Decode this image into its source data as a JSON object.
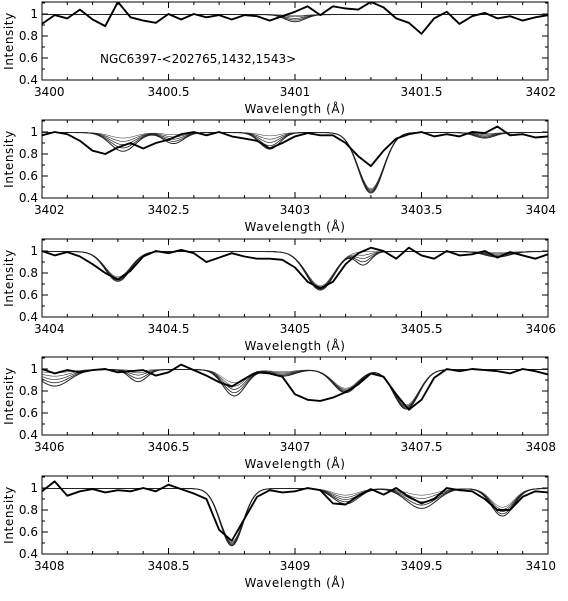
{
  "chart_data": [
    {
      "type": "line",
      "annotation": "NGC6397-<202765,1432,1543>",
      "xlabel": "Wavelength (Å)",
      "ylabel": "Intensity",
      "xlim": [
        3400,
        3402
      ],
      "ylim": [
        0.4,
        1.1
      ],
      "xticks": [
        3400,
        3400.5,
        3401,
        3401.5,
        3402
      ],
      "xtick_labels": [
        "3400",
        "3400.5",
        "3401",
        "3401.5",
        "3402"
      ],
      "yticks": [
        0.4,
        0.6,
        0.8,
        1.0
      ],
      "ytick_labels": [
        "0.4",
        "0.6",
        "0.8",
        "1"
      ],
      "lines": [
        {
          "center": 3401.0,
          "depth": [
            0.01,
            0.02,
            0.035,
            0.05,
            0.065
          ],
          "width": 0.04
        }
      ],
      "observed": {
        "x": [
          3400,
          3400.05,
          3400.1,
          3400.15,
          3400.2,
          3400.25,
          3400.3,
          3400.35,
          3400.4,
          3400.45,
          3400.5,
          3400.55,
          3400.6,
          3400.65,
          3400.7,
          3400.75,
          3400.8,
          3400.85,
          3400.9,
          3400.95,
          3401,
          3401.05,
          3401.1,
          3401.15,
          3401.2,
          3401.25,
          3401.3,
          3401.35,
          3401.4,
          3401.45,
          3401.5,
          3401.55,
          3401.6,
          3401.65,
          3401.7,
          3401.75,
          3401.8,
          3401.85,
          3401.9,
          3401.95,
          3402
        ],
        "y": [
          0.91,
          0.99,
          0.96,
          1.04,
          0.95,
          0.89,
          1.11,
          0.97,
          0.94,
          0.92,
          1.0,
          0.95,
          1.0,
          0.97,
          0.99,
          0.95,
          0.99,
          0.98,
          0.94,
          0.98,
          1.02,
          1.07,
          0.99,
          1.07,
          1.05,
          1.04,
          1.11,
          1.06,
          0.96,
          0.92,
          0.82,
          0.96,
          1.02,
          0.91,
          0.98,
          1.01,
          0.96,
          0.98,
          0.94,
          0.97,
          0.99
        ]
      }
    },
    {
      "type": "line",
      "xlabel": "Wavelength (Å)",
      "ylabel": "Intensity",
      "xlim": [
        3402,
        3404
      ],
      "ylim": [
        0.4,
        1.1
      ],
      "xticks": [
        3402,
        3402.5,
        3403,
        3403.5,
        3404
      ],
      "xtick_labels": [
        "3402",
        "3402.5",
        "3403",
        "3403.5",
        "3404"
      ],
      "yticks": [
        0.4,
        0.6,
        0.8,
        1.0
      ],
      "ytick_labels": [
        "0.4",
        "0.6",
        "0.8",
        "1"
      ],
      "lines": [
        {
          "center": 3402.32,
          "depth": [
            0.05,
            0.08,
            0.11,
            0.14,
            0.17
          ],
          "width": 0.05
        },
        {
          "center": 3402.52,
          "depth": [
            0.02,
            0.04,
            0.06,
            0.08,
            0.1
          ],
          "width": 0.04
        },
        {
          "center": 3402.9,
          "depth": [
            0.03,
            0.06,
            0.09,
            0.12,
            0.15
          ],
          "width": 0.04
        },
        {
          "center": 3403.3,
          "depth": [
            0.51,
            0.52,
            0.53,
            0.54,
            0.55
          ],
          "width": 0.05
        },
        {
          "center": 3403.75,
          "depth": [
            0.01,
            0.02,
            0.03,
            0.04,
            0.05
          ],
          "width": 0.04
        }
      ],
      "observed": {
        "x": [
          3402,
          3402.05,
          3402.1,
          3402.15,
          3402.2,
          3402.25,
          3402.3,
          3402.35,
          3402.4,
          3402.45,
          3402.5,
          3402.55,
          3402.6,
          3402.65,
          3402.7,
          3402.75,
          3402.8,
          3402.85,
          3402.9,
          3402.95,
          3403,
          3403.05,
          3403.1,
          3403.15,
          3403.2,
          3403.25,
          3403.3,
          3403.35,
          3403.4,
          3403.45,
          3403.5,
          3403.55,
          3403.6,
          3403.65,
          3403.7,
          3403.75,
          3403.8,
          3403.85,
          3403.9,
          3403.95,
          3404
        ],
        "y": [
          0.97,
          1.0,
          0.98,
          0.92,
          0.83,
          0.8,
          0.86,
          0.9,
          0.85,
          0.9,
          0.93,
          0.98,
          1.0,
          0.97,
          1.0,
          0.96,
          0.94,
          0.92,
          0.85,
          0.9,
          0.96,
          0.99,
          0.97,
          0.97,
          0.9,
          0.78,
          0.69,
          0.83,
          0.94,
          0.98,
          1.0,
          0.96,
          0.98,
          0.96,
          1.0,
          0.99,
          1.05,
          0.97,
          0.98,
          0.95,
          0.96
        ]
      }
    },
    {
      "type": "line",
      "xlabel": "Wavelength (Å)",
      "ylabel": "Intensity",
      "xlim": [
        3404,
        3406
      ],
      "ylim": [
        0.4,
        1.1
      ],
      "xticks": [
        3404,
        3404.5,
        3405,
        3405.5,
        3406
      ],
      "xtick_labels": [
        "3404",
        "3404.5",
        "3405",
        "3405.5",
        "3406"
      ],
      "yticks": [
        0.4,
        0.6,
        0.8,
        1.0
      ],
      "ytick_labels": [
        "0.4",
        "0.6",
        "0.8",
        "1"
      ],
      "lines": [
        {
          "center": 3404.3,
          "depth": [
            0.23,
            0.24,
            0.25,
            0.26,
            0.27
          ],
          "width": 0.05
        },
        {
          "center": 3405.1,
          "depth": [
            0.31,
            0.32,
            0.33,
            0.34,
            0.35
          ],
          "width": 0.055
        },
        {
          "center": 3405.27,
          "depth": [
            0.0,
            0.03,
            0.06,
            0.09,
            0.12
          ],
          "width": 0.03
        },
        {
          "center": 3405.8,
          "depth": [
            0.01,
            0.02,
            0.03,
            0.04,
            0.05
          ],
          "width": 0.05
        }
      ],
      "observed": {
        "x": [
          3404,
          3404.05,
          3404.1,
          3404.15,
          3404.2,
          3404.25,
          3404.3,
          3404.35,
          3404.4,
          3404.45,
          3404.5,
          3404.55,
          3404.6,
          3404.65,
          3404.7,
          3404.75,
          3404.8,
          3404.85,
          3404.9,
          3404.95,
          3405,
          3405.05,
          3405.1,
          3405.15,
          3405.2,
          3405.25,
          3405.3,
          3405.35,
          3405.4,
          3405.45,
          3405.5,
          3405.55,
          3405.6,
          3405.65,
          3405.7,
          3405.75,
          3405.8,
          3405.85,
          3405.9,
          3405.95,
          3406
        ],
        "y": [
          1.0,
          0.96,
          0.99,
          0.95,
          0.88,
          0.8,
          0.74,
          0.82,
          0.95,
          1.0,
          0.98,
          1.01,
          0.98,
          0.9,
          0.94,
          0.98,
          0.95,
          0.93,
          0.93,
          0.92,
          0.85,
          0.72,
          0.66,
          0.72,
          0.88,
          0.98,
          1.03,
          1.0,
          0.93,
          1.03,
          0.96,
          0.93,
          1.0,
          0.96,
          0.97,
          1.0,
          0.94,
          0.99,
          0.96,
          0.93,
          0.97
        ]
      }
    },
    {
      "type": "line",
      "xlabel": "Wavelength (Å)",
      "ylabel": "Intensity",
      "xlim": [
        3406,
        3408
      ],
      "ylim": [
        0.4,
        1.1
      ],
      "xticks": [
        3406,
        3406.5,
        3407,
        3407.5,
        3408
      ],
      "xtick_labels": [
        "3406",
        "3406.5",
        "3407",
        "3407.5",
        "3408"
      ],
      "yticks": [
        0.4,
        0.6,
        0.8,
        1.0
      ],
      "ytick_labels": [
        "0.4",
        "0.6",
        "0.8",
        "1"
      ],
      "lines": [
        {
          "center": 3406.05,
          "depth": [
            0.03,
            0.06,
            0.09,
            0.12,
            0.15
          ],
          "width": 0.06
        },
        {
          "center": 3406.38,
          "depth": [
            0.01,
            0.03,
            0.05,
            0.08,
            0.11
          ],
          "width": 0.035
        },
        {
          "center": 3406.76,
          "depth": [
            0.12,
            0.15,
            0.18,
            0.21,
            0.24
          ],
          "width": 0.045
        },
        {
          "center": 3406.95,
          "depth": [
            0.02,
            0.03,
            0.04,
            0.05,
            0.06
          ],
          "width": 0.05
        },
        {
          "center": 3407.2,
          "depth": [
            0.17,
            0.18,
            0.19,
            0.2,
            0.21
          ],
          "width": 0.05
        },
        {
          "center": 3407.44,
          "depth": [
            0.32,
            0.33,
            0.34,
            0.35,
            0.36
          ],
          "width": 0.05
        }
      ],
      "observed": {
        "x": [
          3406,
          3406.05,
          3406.1,
          3406.15,
          3406.2,
          3406.25,
          3406.3,
          3406.35,
          3406.4,
          3406.45,
          3406.5,
          3406.55,
          3406.6,
          3406.65,
          3406.7,
          3406.75,
          3406.8,
          3406.85,
          3406.9,
          3406.95,
          3407,
          3407.05,
          3407.1,
          3407.15,
          3407.2,
          3407.25,
          3407.3,
          3407.35,
          3407.4,
          3407.45,
          3407.5,
          3407.55,
          3407.6,
          3407.65,
          3407.7,
          3407.75,
          3407.8,
          3407.85,
          3407.9,
          3407.95,
          3408
        ],
        "y": [
          1.0,
          0.96,
          0.99,
          0.97,
          0.99,
          1.0,
          0.97,
          0.98,
          0.99,
          0.94,
          0.97,
          1.04,
          0.99,
          0.94,
          0.88,
          0.84,
          0.91,
          0.97,
          0.96,
          0.93,
          0.77,
          0.72,
          0.71,
          0.74,
          0.79,
          0.86,
          0.96,
          0.93,
          0.77,
          0.63,
          0.72,
          0.92,
          1.0,
          0.98,
          1.0,
          0.99,
          0.98,
          0.96,
          1.0,
          0.98,
          0.95
        ]
      }
    },
    {
      "type": "line",
      "xlabel": "Wavelength (Å)",
      "ylabel": "Intensity",
      "xlim": [
        3408,
        3410
      ],
      "ylim": [
        0.4,
        1.1
      ],
      "xticks": [
        3408,
        3408.5,
        3409,
        3409.5,
        3410
      ],
      "xtick_labels": [
        "3408",
        "3408.5",
        "3409",
        "3409.5",
        "3410"
      ],
      "yticks": [
        0.4,
        0.6,
        0.8,
        1.0
      ],
      "ytick_labels": [
        "0.4",
        "0.6",
        "0.8",
        "1"
      ],
      "lines": [
        {
          "center": 3408.75,
          "depth": [
            0.48,
            0.49,
            0.5,
            0.51,
            0.52
          ],
          "width": 0.045
        },
        {
          "center": 3409.2,
          "depth": [
            0.06,
            0.08,
            0.1,
            0.12,
            0.14
          ],
          "width": 0.05
        },
        {
          "center": 3409.5,
          "depth": [
            0.06,
            0.09,
            0.12,
            0.15,
            0.18
          ],
          "width": 0.06
        },
        {
          "center": 3409.82,
          "depth": [
            0.17,
            0.19,
            0.21,
            0.23,
            0.25
          ],
          "width": 0.045
        }
      ],
      "observed": {
        "x": [
          3408,
          3408.05,
          3408.1,
          3408.15,
          3408.2,
          3408.25,
          3408.3,
          3408.35,
          3408.4,
          3408.45,
          3408.5,
          3408.55,
          3408.6,
          3408.65,
          3408.7,
          3408.75,
          3408.8,
          3408.85,
          3408.9,
          3408.95,
          3409,
          3409.05,
          3409.1,
          3409.15,
          3409.2,
          3409.25,
          3409.3,
          3409.35,
          3409.4,
          3409.45,
          3409.5,
          3409.55,
          3409.6,
          3409.65,
          3409.7,
          3409.75,
          3409.8,
          3409.85,
          3409.9,
          3409.95,
          3410
        ],
        "y": [
          0.97,
          1.06,
          0.93,
          0.97,
          0.99,
          0.96,
          0.98,
          0.97,
          1.0,
          0.97,
          1.03,
          0.99,
          0.95,
          0.9,
          0.62,
          0.52,
          0.72,
          0.92,
          0.98,
          0.96,
          0.97,
          1.0,
          0.98,
          0.86,
          0.85,
          0.93,
          0.99,
          0.94,
          1.0,
          0.92,
          0.86,
          0.9,
          1.0,
          0.98,
          0.97,
          0.9,
          0.8,
          0.8,
          0.92,
          0.97,
          0.96
        ]
      }
    }
  ]
}
